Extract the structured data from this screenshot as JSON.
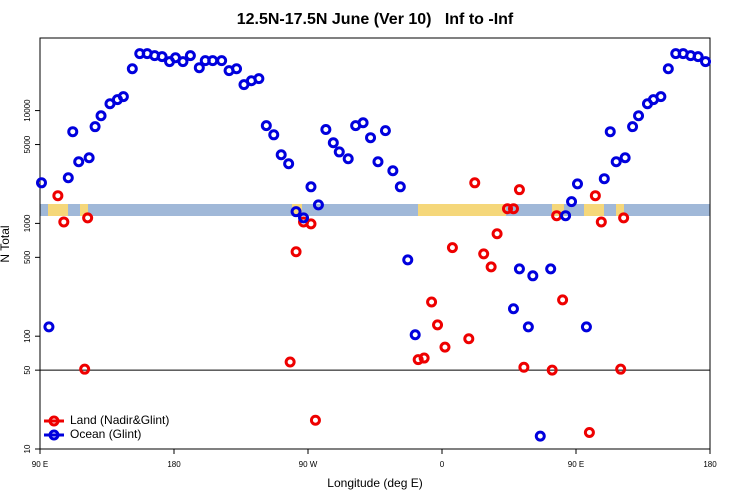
{
  "chart_data": {
    "type": "scatter",
    "title": "12.5N-17.5N June (Ver 10)   Inf to -Inf",
    "xlabel": "Longitude (deg E)",
    "ylabel": "N Total",
    "log_y": true,
    "legend": "lower left",
    "xlim": [
      90,
      540
    ],
    "ylim": [
      10,
      44000
    ],
    "xticks": [
      {
        "value": 90,
        "label": "90 E"
      },
      180,
      {
        "value": 270,
        "label": "90 W"
      },
      {
        "value": 360,
        "label": "0"
      },
      {
        "value": 450,
        "label": "90 E"
      },
      {
        "value": 540,
        "label": "180"
      }
    ],
    "yticks": [
      10,
      50,
      100,
      500,
      1000,
      5000,
      10000
    ],
    "reference_line": 50,
    "series": [
      {
        "name": "Land (Nadir&Glint)",
        "color": "#ee0000",
        "x": [
          102,
          106,
          120,
          122,
          258,
          262,
          267,
          272,
          275,
          344,
          348,
          353,
          357,
          362,
          367,
          378,
          382,
          388,
          393,
          397,
          404,
          408,
          412,
          415,
          434,
          437,
          441,
          459,
          463,
          467,
          480,
          482
        ],
        "values": [
          1760,
          1030,
          51,
          1120,
          59,
          560,
          1030,
          990,
          18,
          62,
          64,
          201,
          126,
          80,
          610,
          95,
          2290,
          537,
          412,
          810,
          1350,
          1350,
          1990,
          53,
          50,
          1170,
          210,
          14,
          1760,
          1030,
          51,
          1120
        ]
      },
      {
        "name": "Ocean (Glint)",
        "color": "#0000dd",
        "x": [
          91,
          96,
          109,
          112,
          116,
          123,
          127,
          131,
          137,
          142,
          146,
          152,
          157,
          162,
          167,
          172,
          177,
          181,
          186,
          191,
          197,
          201,
          206,
          212,
          217,
          222,
          227,
          232,
          237,
          242,
          247,
          252,
          257,
          262,
          267,
          272,
          277,
          282,
          287,
          291,
          297,
          302,
          307,
          312,
          317,
          322,
          327,
          332,
          337,
          342,
          408,
          412,
          418,
          421,
          426,
          433,
          443,
          447,
          451,
          457,
          469,
          473,
          477,
          483,
          488,
          492,
          498,
          502,
          507,
          512,
          517,
          522,
          527,
          532,
          537
        ],
        "values": [
          2290,
          121,
          2540,
          6500,
          3520,
          3820,
          7200,
          9000,
          11500,
          12500,
          13300,
          23500,
          32000,
          32000,
          30700,
          30100,
          27200,
          29400,
          27200,
          30700,
          24000,
          27700,
          27700,
          27700,
          22600,
          23500,
          17000,
          18400,
          19200,
          7350,
          6100,
          4060,
          3380,
          1270,
          1120,
          2110,
          1460,
          6800,
          5190,
          4300,
          3740,
          7350,
          7800,
          5750,
          3520,
          6640,
          2930,
          2110,
          475,
          103,
          175,
          395,
          121,
          343,
          13,
          395,
          1170,
          1560,
          2240,
          121,
          2490,
          6500,
          3520,
          3820,
          7200,
          9000,
          11500,
          12500,
          13300,
          23500,
          32000,
          32000,
          30700,
          30100,
          27200
        ]
      }
    ]
  }
}
